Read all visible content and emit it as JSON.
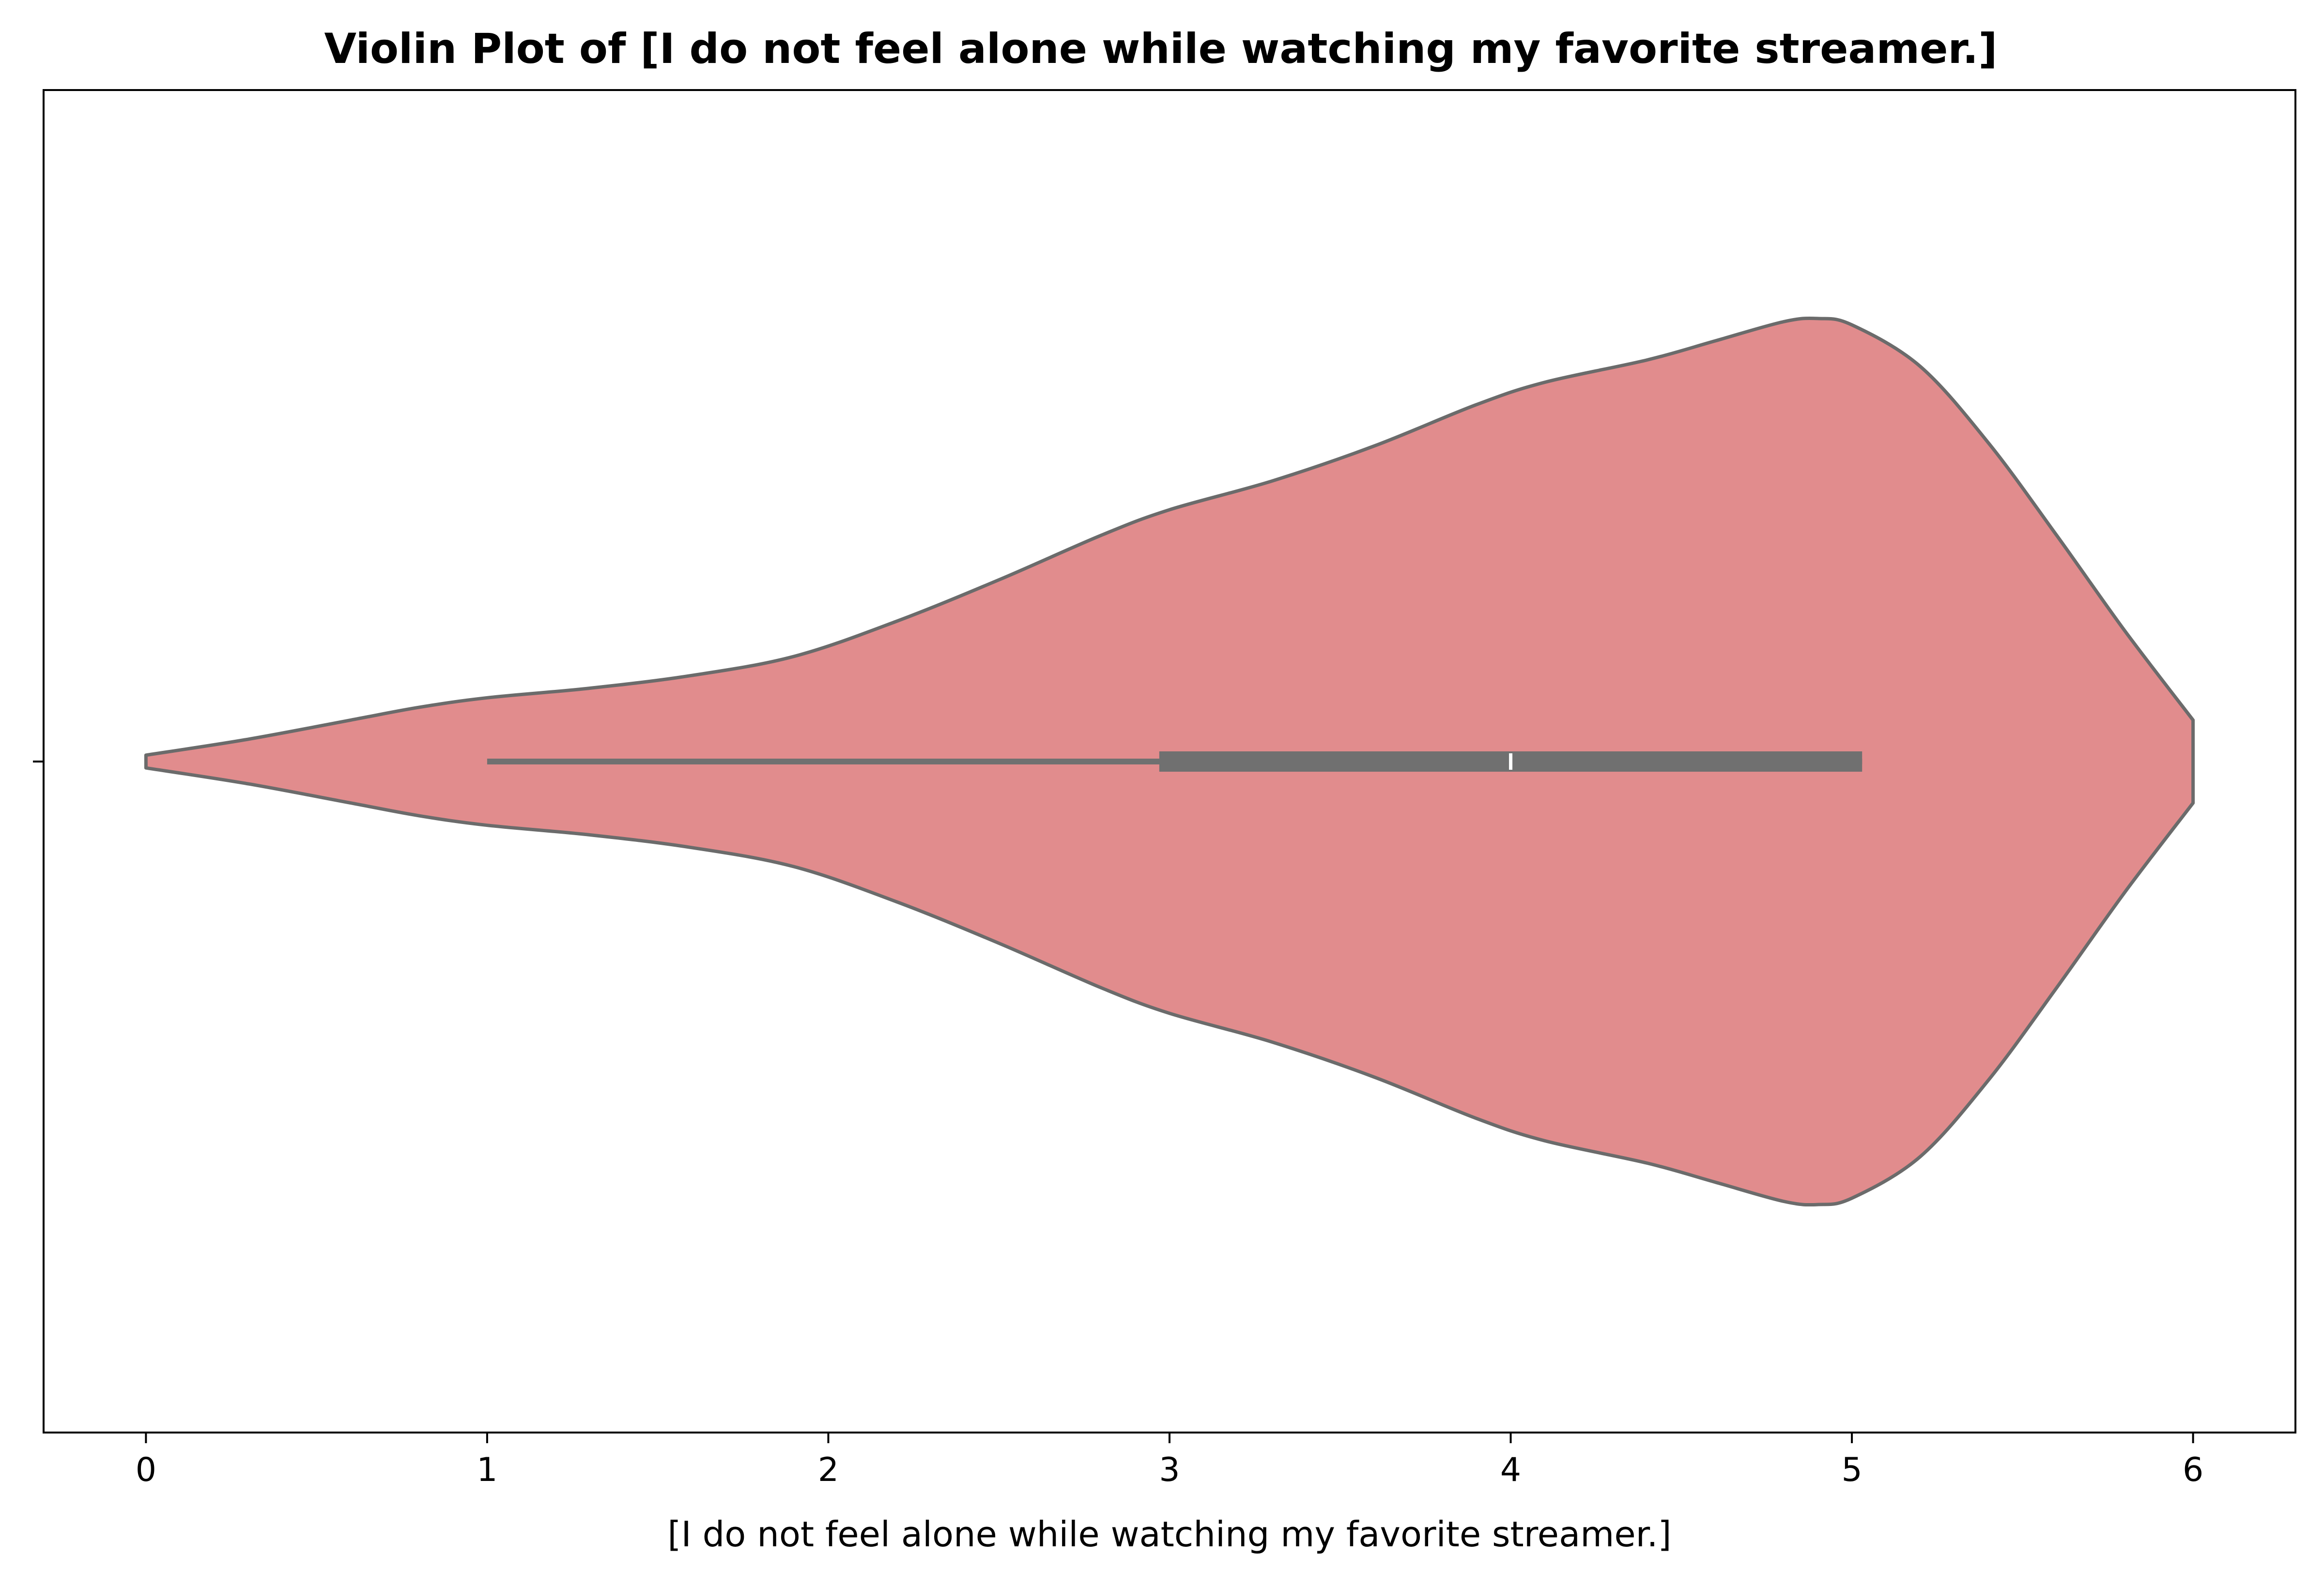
{
  "chart_data": {
    "type": "violin",
    "title": "Violin Plot of [I do not feel alone while watching my favorite streamer.]",
    "xlabel": "[I do not feel alone while watching my favorite streamer.]",
    "ylabel": "",
    "xlim": [
      -0.3,
      6.3
    ],
    "xticks": [
      0,
      1,
      2,
      3,
      4,
      5,
      6
    ],
    "xtick_labels": [
      "0",
      "1",
      "2",
      "3",
      "4",
      "5",
      "6"
    ],
    "yticks": [
      ""
    ],
    "grid": false,
    "violin": {
      "fill_color": "#e18c8d",
      "edge_color": "#6b6b6b",
      "density_relative_width": {
        "x": [
          0.0,
          0.3,
          0.6,
          0.8,
          1.0,
          1.3,
          1.6,
          1.9,
          2.2,
          2.5,
          2.8,
          3.0,
          3.3,
          3.6,
          3.9,
          4.1,
          4.4,
          4.6,
          4.8,
          4.9,
          5.0,
          5.2,
          5.4,
          5.6,
          5.8,
          6.0
        ],
        "y": [
          0.02,
          0.07,
          0.13,
          0.17,
          0.2,
          0.23,
          0.27,
          0.33,
          0.44,
          0.57,
          0.71,
          0.79,
          0.88,
          0.99,
          1.12,
          1.19,
          1.26,
          1.32,
          1.38,
          1.39,
          1.37,
          1.24,
          1.0,
          0.71,
          0.41,
          0.13
        ]
      },
      "whisker_low": 1,
      "q1": 2.97,
      "median": 4,
      "q3": 5.03,
      "whisker_high": 5.03,
      "max_half_width_fraction": 0.66
    }
  }
}
